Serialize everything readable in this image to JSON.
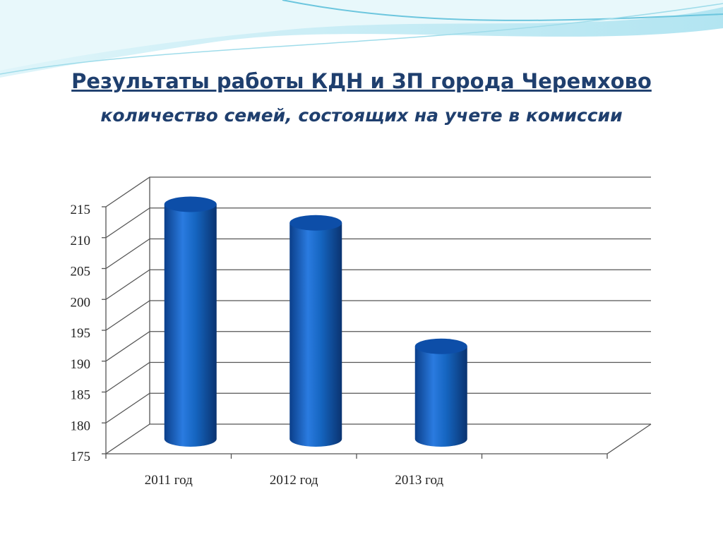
{
  "chart_data": {
    "type": "bar",
    "title": "Результаты работы КДН и ЗП города Черемхово",
    "subtitle": "количество семей, состоящих на учете в комиссии",
    "categories": [
      "2011 год",
      "2012 год",
      "2013 год",
      null
    ],
    "values": [
      213,
      210,
      190,
      null
    ],
    "color": "#1565c0",
    "ylim": [
      175,
      215
    ],
    "yticks": [
      175,
      180,
      185,
      190,
      195,
      200,
      205,
      210,
      215
    ],
    "grid": true
  }
}
